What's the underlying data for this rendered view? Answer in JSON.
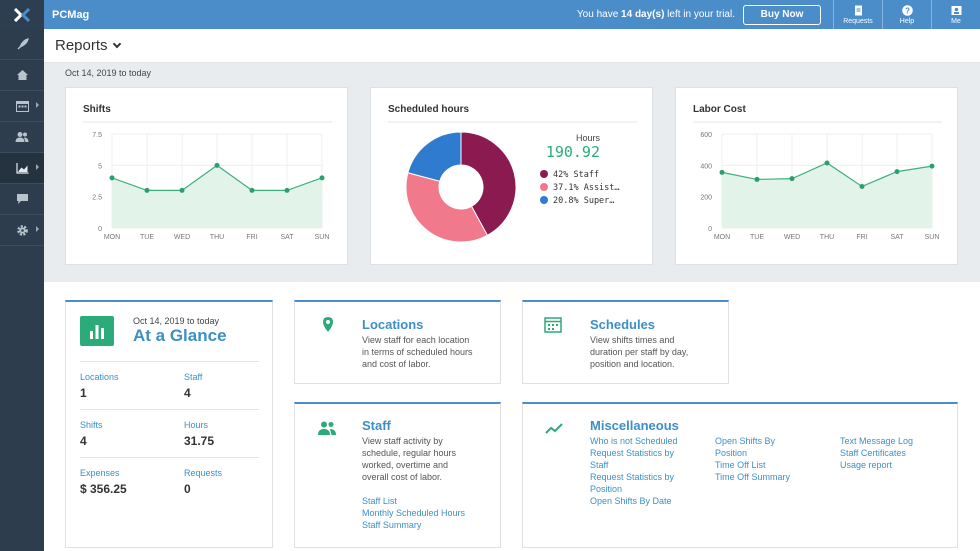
{
  "topbar": {
    "org_name": "PCMag",
    "trial_prefix": "You have ",
    "trial_days": "14 day(s)",
    "trial_suffix": " left in your trial.",
    "buy_label": "Buy Now",
    "requests_label": "Requests",
    "help_label": "Help",
    "me_label": "Me"
  },
  "sidebar": {
    "items": [
      "rocket-icon",
      "home-icon",
      "calendar-icon",
      "users-icon",
      "chart-icon",
      "chat-icon",
      "gear-icon"
    ],
    "active_index": 4
  },
  "header": {
    "title": "Reports"
  },
  "date_range": "Oct 14, 2019 to today",
  "colors": {
    "accent": "#4a8dc8",
    "green": "#2bab7a",
    "staff_slice": "#8a1a50",
    "assist_slice": "#f07a8c",
    "super_slice": "#2e7bcf"
  },
  "charts": {
    "shifts": {
      "title": "Shifts",
      "categories": [
        "MON",
        "TUE",
        "WED",
        "THU",
        "FRI",
        "SAT",
        "SUN"
      ],
      "y_ticks": [
        "7.5",
        "5",
        "2.5",
        "0"
      ]
    },
    "hours": {
      "title": "Scheduled hours",
      "total_label": "Hours",
      "total_value": "190.92",
      "legend": [
        "42% Staff",
        "37.1% Assist…",
        "20.8% Super…"
      ]
    },
    "labor": {
      "title": "Labor Cost",
      "categories": [
        "MON",
        "TUE",
        "WED",
        "THU",
        "FRI",
        "SAT",
        "SUN"
      ],
      "y_ticks": [
        "600",
        "400",
        "200",
        "0"
      ]
    }
  },
  "chart_data": [
    {
      "type": "area",
      "title": "Shifts",
      "categories": [
        "MON",
        "TUE",
        "WED",
        "THU",
        "FRI",
        "SAT",
        "SUN"
      ],
      "values": [
        4,
        3,
        3,
        5,
        3,
        3,
        4
      ],
      "ylim": [
        0,
        7.5
      ],
      "grid": true
    },
    {
      "type": "pie",
      "title": "Scheduled hours",
      "total": 190.92,
      "slices": [
        {
          "label": "Staff",
          "percent": 42
        },
        {
          "label": "Assist…",
          "percent": 37.1
        },
        {
          "label": "Super…",
          "percent": 20.8
        }
      ]
    },
    {
      "type": "area",
      "title": "Labor Cost",
      "categories": [
        "MON",
        "TUE",
        "WED",
        "THU",
        "FRI",
        "SAT",
        "SUN"
      ],
      "values": [
        355,
        310,
        315,
        415,
        265,
        360,
        395
      ],
      "ylim": [
        0,
        600
      ],
      "grid": true
    }
  ],
  "glance": {
    "date": "Oct 14, 2019 to today",
    "title": "At a Glance",
    "stats": [
      {
        "label": "Locations",
        "value": "1"
      },
      {
        "label": "Staff",
        "value": "4"
      },
      {
        "label": "Shifts",
        "value": "4"
      },
      {
        "label": "Hours",
        "value": "31.75"
      },
      {
        "label": "Expenses",
        "value": "$ 356.25"
      },
      {
        "label": "Requests",
        "value": "0"
      }
    ]
  },
  "tiles": {
    "locations": {
      "title": "Locations",
      "desc": [
        "View staff for each location",
        "in terms of scheduled hours",
        "and cost of labor."
      ]
    },
    "schedules": {
      "title": "Schedules",
      "desc": [
        "View shifts times and",
        "duration per staff by day,",
        "position and location."
      ]
    },
    "staff": {
      "title": "Staff",
      "desc": [
        "View staff activity by",
        "schedule, regular hours",
        "worked, overtime and",
        "overall cost of labor."
      ],
      "links": [
        "Staff List",
        "Monthly Scheduled Hours",
        "Staff Summary"
      ]
    },
    "misc": {
      "title": "Miscellaneous",
      "col1": [
        "Who is not Scheduled",
        "Request Statistics by",
        "Staff",
        "Request Statistics by",
        "Position",
        "Open Shifts By Date"
      ],
      "col2": [
        "Open Shifts By",
        "Position",
        "Time Off List",
        "Time Off Summary"
      ],
      "col3": [
        "Text Message Log",
        "Staff Certificates",
        "Usage report"
      ]
    }
  }
}
